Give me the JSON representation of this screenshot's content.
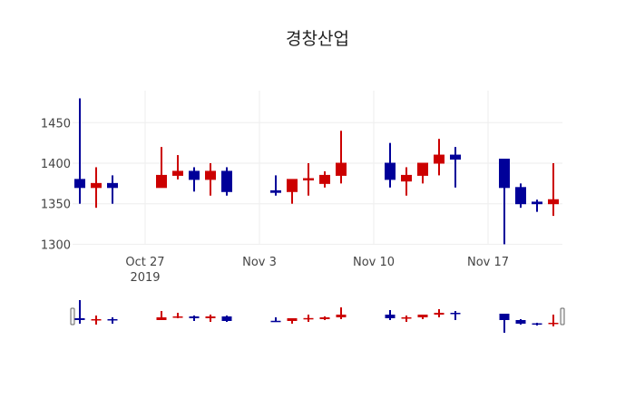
{
  "title": "경창산업",
  "colors": {
    "increasing": "#cc0000",
    "decreasing": "#000099",
    "grid": "#eeeeee"
  },
  "chart_data": {
    "type": "candlestick",
    "title": "경창산업",
    "xlabel": "",
    "ylabel": "",
    "ylim": [
      1295,
      1485
    ],
    "yticks": [
      1300,
      1350,
      1400,
      1450
    ],
    "xticks": [
      {
        "date": "2019-10-27",
        "label": "Oct 27",
        "sublabel": "2019"
      },
      {
        "date": "2019-11-03",
        "label": "Nov 3"
      },
      {
        "date": "2019-11-10",
        "label": "Nov 10"
      },
      {
        "date": "2019-11-17",
        "label": "Nov 17"
      }
    ],
    "range_slider": true,
    "series": [
      {
        "date": "2019-10-23",
        "open": 1380,
        "high": 1480,
        "low": 1350,
        "close": 1370
      },
      {
        "date": "2019-10-24",
        "open": 1370,
        "high": 1395,
        "low": 1345,
        "close": 1375
      },
      {
        "date": "2019-10-25",
        "open": 1375,
        "high": 1385,
        "low": 1350,
        "close": 1370
      },
      {
        "date": "2019-10-28",
        "open": 1370,
        "high": 1420,
        "low": 1370,
        "close": 1385
      },
      {
        "date": "2019-10-29",
        "open": 1385,
        "high": 1410,
        "low": 1380,
        "close": 1390
      },
      {
        "date": "2019-10-30",
        "open": 1390,
        "high": 1395,
        "low": 1365,
        "close": 1380
      },
      {
        "date": "2019-10-31",
        "open": 1380,
        "high": 1400,
        "low": 1360,
        "close": 1390
      },
      {
        "date": "2019-11-01",
        "open": 1390,
        "high": 1395,
        "low": 1360,
        "close": 1365
      },
      {
        "date": "2019-11-04",
        "open": 1366,
        "high": 1385,
        "low": 1360,
        "close": 1364
      },
      {
        "date": "2019-11-05",
        "open": 1365,
        "high": 1380,
        "low": 1350,
        "close": 1380
      },
      {
        "date": "2019-11-06",
        "open": 1380,
        "high": 1400,
        "low": 1360,
        "close": 1381
      },
      {
        "date": "2019-11-07",
        "open": 1375,
        "high": 1390,
        "low": 1370,
        "close": 1385
      },
      {
        "date": "2019-11-08",
        "open": 1385,
        "high": 1440,
        "low": 1375,
        "close": 1400
      },
      {
        "date": "2019-11-11",
        "open": 1400,
        "high": 1425,
        "low": 1370,
        "close": 1380
      },
      {
        "date": "2019-11-12",
        "open": 1378,
        "high": 1395,
        "low": 1360,
        "close": 1385
      },
      {
        "date": "2019-11-13",
        "open": 1385,
        "high": 1400,
        "low": 1375,
        "close": 1400
      },
      {
        "date": "2019-11-14",
        "open": 1400,
        "high": 1430,
        "low": 1385,
        "close": 1410
      },
      {
        "date": "2019-11-15",
        "open": 1410,
        "high": 1420,
        "low": 1370,
        "close": 1405
      },
      {
        "date": "2019-11-18",
        "open": 1405,
        "high": 1405,
        "low": 1300,
        "close": 1370
      },
      {
        "date": "2019-11-19",
        "open": 1370,
        "high": 1375,
        "low": 1345,
        "close": 1350
      },
      {
        "date": "2019-11-20",
        "open": 1352,
        "high": 1355,
        "low": 1340,
        "close": 1350
      },
      {
        "date": "2019-11-21",
        "open": 1350,
        "high": 1400,
        "low": 1335,
        "close": 1355
      }
    ]
  }
}
